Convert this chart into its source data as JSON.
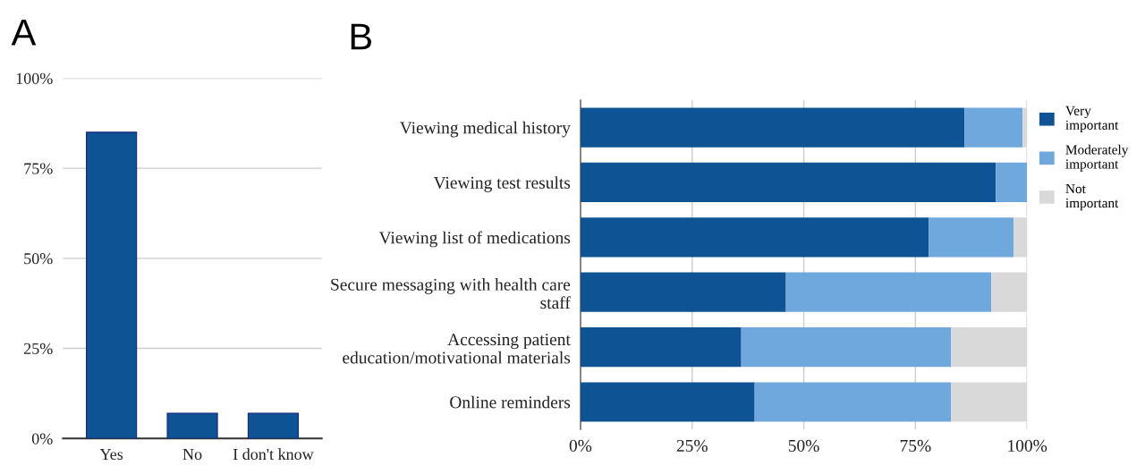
{
  "chart_data": [
    {
      "type": "bar",
      "title": "A",
      "categories": [
        "Yes",
        "No",
        "I don't know"
      ],
      "values": [
        85,
        7,
        7
      ],
      "color": "#0e5394",
      "ylim": [
        0,
        100
      ],
      "yticks": [
        {
          "value": 0,
          "label": "0%"
        },
        {
          "value": 25,
          "label": "25%"
        },
        {
          "value": 50,
          "label": "50%"
        },
        {
          "value": 75,
          "label": "75%"
        },
        {
          "value": 100,
          "label": "100%"
        }
      ],
      "grid": "y",
      "legend": false
    },
    {
      "type": "bar",
      "title": "B",
      "orientation": "horizontal",
      "stacked": true,
      "categories": [
        "Viewing medical history",
        "Viewing test results",
        "Viewing list of medications",
        "Secure messaging with health care\nstaff",
        "Accessing patient\neducation/motivational materials",
        "Online reminders"
      ],
      "series": [
        {
          "name": "Very\nimportant",
          "color": "#0e5394",
          "values": [
            86,
            93,
            78,
            46,
            36,
            39
          ]
        },
        {
          "name": "Moderately\nimportant",
          "color": "#6fa8dc",
          "values": [
            13,
            7,
            19,
            46,
            47,
            44
          ]
        },
        {
          "name": "Not\nimportant",
          "color": "#d9d9d9",
          "values": [
            1,
            0,
            3,
            8,
            17,
            17
          ]
        }
      ],
      "xlim": [
        0,
        100
      ],
      "xticks": [
        {
          "value": 0,
          "label": "0%"
        },
        {
          "value": 25,
          "label": "25%"
        },
        {
          "value": 50,
          "label": "50%"
        },
        {
          "value": 75,
          "label": "75%"
        },
        {
          "value": 100,
          "label": "100%"
        }
      ],
      "grid": "x",
      "legend": "top right"
    }
  ]
}
